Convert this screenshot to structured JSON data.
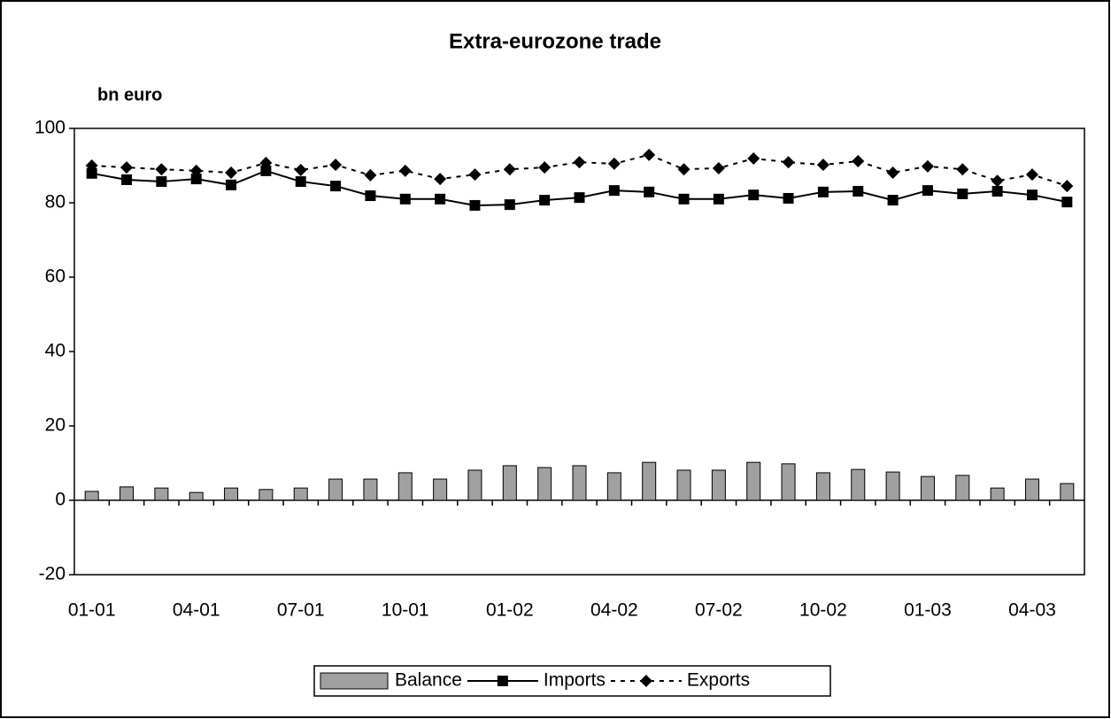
{
  "chart_data": {
    "type": "bar-line",
    "title": "Extra-eurozone trade",
    "y_axis_label": "bn euro",
    "categories": [
      "01-01",
      null,
      null,
      "04-01",
      null,
      null,
      "07-01",
      null,
      null,
      "10-01",
      null,
      null,
      "01-02",
      null,
      null,
      "04-02",
      null,
      null,
      "07-02",
      null,
      null,
      "10-02",
      null,
      null,
      "01-03",
      null,
      null,
      "04-03",
      null
    ],
    "series": [
      {
        "name": "Balance",
        "type": "bar",
        "color": "#a0a0a0",
        "values": [
          2.4,
          3.6,
          3.3,
          2.1,
          3.3,
          2.9,
          3.3,
          5.7,
          5.7,
          7.4,
          5.7,
          8.1,
          9.3,
          8.8,
          9.3,
          7.4,
          10.2,
          8.1,
          8.1,
          10.2,
          9.8,
          7.4,
          8.3,
          7.6,
          6.4,
          6.7,
          3.3,
          5.7,
          4.5
        ]
      },
      {
        "name": "Imports",
        "type": "line",
        "color": "#000000",
        "marker": "square",
        "dash": false,
        "values": [
          87.9,
          86.2,
          85.7,
          86.4,
          84.8,
          88.6,
          85.7,
          84.5,
          81.9,
          81.0,
          81.0,
          79.3,
          79.5,
          80.7,
          81.4,
          83.3,
          82.9,
          81.0,
          81.0,
          82.1,
          81.2,
          82.9,
          83.1,
          80.7,
          83.3,
          82.4,
          83.1,
          82.1,
          80.2
        ]
      },
      {
        "name": "Exports",
        "type": "line",
        "color": "#000000",
        "marker": "diamond",
        "dash": true,
        "values": [
          90.0,
          89.5,
          89.0,
          88.6,
          88.1,
          90.7,
          88.8,
          90.2,
          87.4,
          88.6,
          86.4,
          87.6,
          89.0,
          89.5,
          90.9,
          90.5,
          92.9,
          89.0,
          89.3,
          91.9,
          90.9,
          90.2,
          91.2,
          88.1,
          89.8,
          89.0,
          85.9,
          87.6,
          84.5
        ]
      }
    ],
    "ylim": [
      -20,
      100
    ],
    "yticks": [
      -20,
      0,
      20,
      40,
      60,
      80,
      100
    ],
    "grid": false,
    "legend": "bottom"
  }
}
